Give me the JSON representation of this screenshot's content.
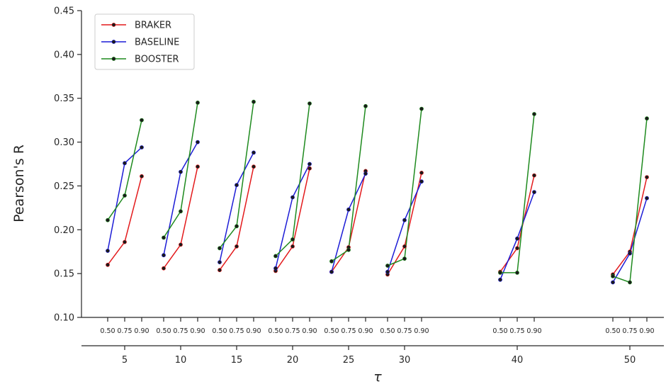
{
  "chart_data": {
    "type": "line",
    "title": "",
    "xlabel": "τ",
    "ylabel": "Pearson's R",
    "ylim": [
      0.1,
      0.45
    ],
    "yticks": [
      "0.10",
      "0.15",
      "0.20",
      "0.25",
      "0.30",
      "0.35",
      "0.40",
      "0.45"
    ],
    "tau_values": [
      5,
      10,
      15,
      20,
      25,
      30,
      40,
      50
    ],
    "quantiles": [
      "0.50",
      "0.75",
      "0.90"
    ],
    "grid": false,
    "legend_position": "top-left",
    "series": [
      {
        "name": "BRAKER",
        "color": "#e31a1c",
        "values": [
          [
            0.16,
            0.186,
            0.261
          ],
          [
            0.156,
            0.183,
            0.272
          ],
          [
            0.154,
            0.181,
            0.272
          ],
          [
            0.153,
            0.181,
            0.27
          ],
          [
            0.152,
            0.18,
            0.267
          ],
          [
            0.149,
            0.181,
            0.265
          ],
          [
            0.152,
            0.179,
            0.262
          ],
          [
            0.149,
            0.175,
            0.26
          ]
        ]
      },
      {
        "name": "BASELINE",
        "color": "#1c1cd6",
        "values": [
          [
            0.176,
            0.276,
            0.294
          ],
          [
            0.171,
            0.266,
            0.3
          ],
          [
            0.163,
            0.251,
            0.288
          ],
          [
            0.156,
            0.237,
            0.275
          ],
          [
            0.152,
            0.223,
            0.264
          ],
          [
            0.152,
            0.211,
            0.255
          ],
          [
            0.143,
            0.19,
            0.243
          ],
          [
            0.14,
            0.173,
            0.236
          ]
        ]
      },
      {
        "name": "BOOSTER",
        "color": "#1e8a1e",
        "values": [
          [
            0.211,
            0.239,
            0.325
          ],
          [
            0.191,
            0.221,
            0.345
          ],
          [
            0.179,
            0.204,
            0.346
          ],
          [
            0.17,
            0.189,
            0.344
          ],
          [
            0.164,
            0.177,
            0.341
          ],
          [
            0.159,
            0.167,
            0.338
          ],
          [
            0.151,
            0.151,
            0.332
          ],
          [
            0.147,
            0.14,
            0.327
          ]
        ]
      }
    ]
  }
}
